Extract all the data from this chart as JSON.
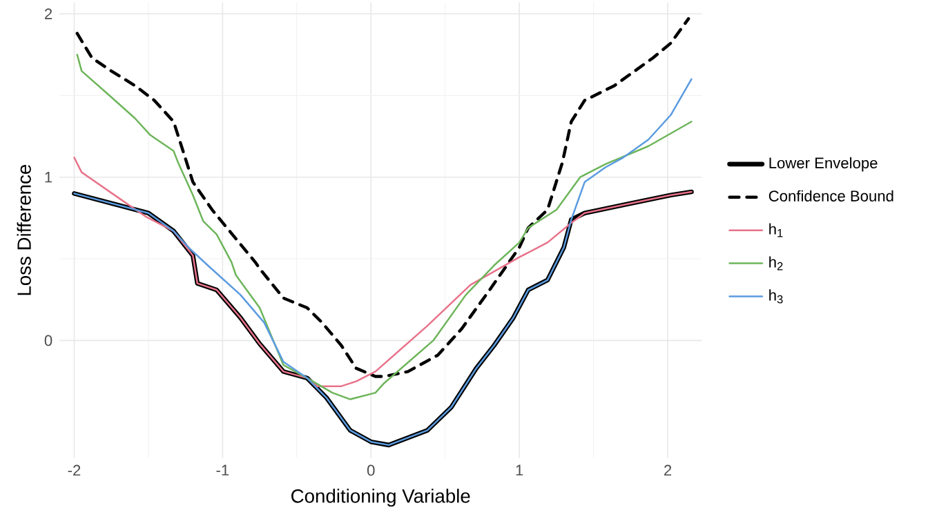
{
  "chart_data": {
    "type": "line",
    "xlabel": "Conditioning Variable",
    "ylabel": "Loss Difference",
    "xlim": [
      -2.1,
      2.23
    ],
    "ylim": [
      -0.72,
      2.07
    ],
    "xticks": [
      -2,
      -1,
      0,
      1,
      2
    ],
    "yticks": [
      0,
      1,
      2
    ],
    "grid": true,
    "legend": "right",
    "series": [
      {
        "name": "Lower Envelope",
        "color": "#000000",
        "line_style": "solid",
        "x": [
          -2,
          -1.5,
          -1.33,
          -1.2,
          -1.17,
          -1.04,
          -0.88,
          -0.75,
          -0.59,
          -0.43,
          -0.3,
          -0.14,
          0,
          0.12,
          0.38,
          0.54,
          0.71,
          0.83,
          0.96,
          1.06,
          1.19,
          1.3,
          1.35,
          1.44,
          1.7,
          2.02,
          2.16
        ],
        "values": [
          0.9,
          0.78,
          0.67,
          0.52,
          0.35,
          0.31,
          0.14,
          -0.02,
          -0.19,
          -0.23,
          -0.35,
          -0.55,
          -0.62,
          -0.64,
          -0.55,
          -0.41,
          -0.17,
          -0.03,
          0.14,
          0.31,
          0.37,
          0.57,
          0.74,
          0.78,
          0.83,
          0.89,
          0.91
        ]
      },
      {
        "name": "Confidence Bound",
        "color": "#000000",
        "line_style": "dashed",
        "x": [
          -1.98,
          -1.88,
          -1.75,
          -1.59,
          -1.46,
          -1.33,
          -1.27,
          -1.2,
          -1.07,
          -0.98,
          -0.78,
          -0.75,
          -0.59,
          -0.43,
          -0.33,
          -0.2,
          -0.1,
          0.03,
          0.09,
          0.25,
          0.45,
          0.61,
          0.8,
          1.0,
          1.06,
          1.19,
          1.29,
          1.35,
          1.44,
          1.64,
          1.9,
          2.02,
          2.14
        ],
        "values": [
          1.88,
          1.73,
          1.65,
          1.56,
          1.47,
          1.34,
          1.17,
          0.97,
          0.8,
          0.7,
          0.48,
          0.44,
          0.26,
          0.2,
          0.11,
          -0.03,
          -0.17,
          -0.22,
          -0.22,
          -0.19,
          -0.09,
          0.07,
          0.31,
          0.57,
          0.69,
          0.8,
          1.09,
          1.34,
          1.47,
          1.56,
          1.73,
          1.82,
          1.97
        ]
      },
      {
        "name": "h$_{1}$",
        "color": "#e8728a",
        "line_style": "solid",
        "x": [
          -2,
          -1.95,
          -1.68,
          -1.52,
          -1.33,
          -1.2,
          -1.17,
          -1.04,
          -0.88,
          -0.75,
          -0.59,
          -0.43,
          -0.36,
          -0.2,
          -0.1,
          0.03,
          0.38,
          0.67,
          1.0,
          1.19,
          1.35,
          1.44,
          1.7,
          2.02,
          2.16
        ],
        "values": [
          1.12,
          1.03,
          0.86,
          0.76,
          0.67,
          0.52,
          0.35,
          0.31,
          0.14,
          -0.02,
          -0.19,
          -0.23,
          -0.28,
          -0.28,
          -0.25,
          -0.19,
          0.09,
          0.34,
          0.51,
          0.6,
          0.72,
          0.78,
          0.83,
          0.89,
          0.91
        ]
      },
      {
        "name": "h$_{2}$",
        "color": "#6db55a",
        "line_style": "solid",
        "x": [
          -1.98,
          -1.95,
          -1.75,
          -1.59,
          -1.49,
          -1.33,
          -1.3,
          -1.2,
          -1.13,
          -1.04,
          -0.94,
          -0.91,
          -0.75,
          -0.59,
          -0.43,
          -0.26,
          -0.14,
          0.03,
          0.09,
          0.42,
          0.64,
          0.83,
          1.0,
          1.06,
          1.25,
          1.41,
          1.58,
          1.87,
          2.16
        ],
        "values": [
          1.75,
          1.65,
          1.49,
          1.36,
          1.26,
          1.16,
          1.09,
          0.89,
          0.73,
          0.65,
          0.48,
          0.4,
          0.2,
          -0.15,
          -0.23,
          -0.32,
          -0.36,
          -0.32,
          -0.26,
          0.0,
          0.28,
          0.46,
          0.6,
          0.69,
          0.8,
          1.0,
          1.08,
          1.19,
          1.34
        ]
      },
      {
        "name": "h$_{3}$",
        "color": "#5b9be0",
        "line_style": "solid",
        "x": [
          -2,
          -1.5,
          -1.33,
          -1.23,
          -1.1,
          -0.88,
          -0.72,
          -0.59,
          -0.43,
          -0.3,
          -0.14,
          0,
          0.12,
          0.38,
          0.54,
          0.71,
          0.83,
          0.96,
          1.06,
          1.19,
          1.3,
          1.35,
          1.44,
          1.58,
          1.7,
          1.87,
          2.02,
          2.16
        ],
        "values": [
          0.9,
          0.78,
          0.67,
          0.57,
          0.46,
          0.28,
          0.11,
          -0.13,
          -0.23,
          -0.35,
          -0.55,
          -0.62,
          -0.64,
          -0.55,
          -0.41,
          -0.17,
          -0.03,
          0.14,
          0.31,
          0.37,
          0.57,
          0.74,
          0.97,
          1.06,
          1.12,
          1.23,
          1.38,
          1.6
        ]
      }
    ]
  }
}
